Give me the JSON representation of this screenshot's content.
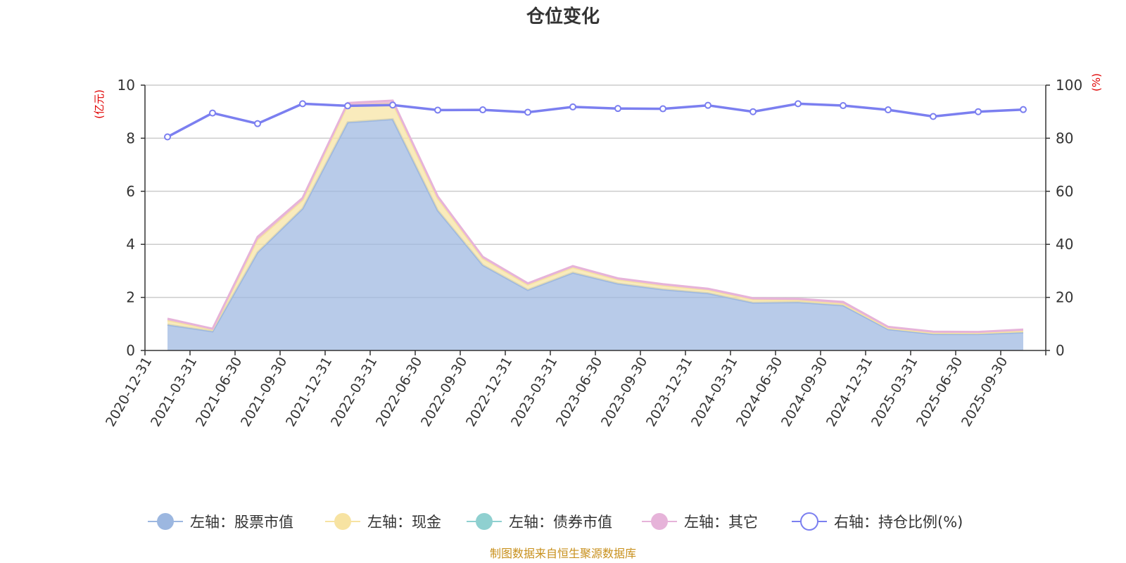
{
  "chart_data": {
    "type": "area",
    "title": "仓位变化",
    "left_axis_unit": "(亿元)",
    "right_axis_unit": "(%)",
    "ylim_left": [
      0,
      10
    ],
    "ylim_right": [
      0,
      100
    ],
    "yticks_left": [
      "0",
      "2",
      "4",
      "6",
      "8",
      "10"
    ],
    "yticks_right": [
      "0",
      "20",
      "40",
      "60",
      "80",
      "100"
    ],
    "categories": [
      "2020-12-31",
      "2021-03-31",
      "2021-06-30",
      "2021-09-30",
      "2021-12-31",
      "2022-03-31",
      "2022-06-30",
      "2022-09-30",
      "2022-12-31",
      "2023-03-31",
      "2023-06-30",
      "2023-09-30",
      "2023-12-31",
      "2024-03-31",
      "2024-06-30",
      "2024-09-30",
      "2024-12-31",
      "2025-03-31",
      "2025-06-30",
      "2025-09-30"
    ],
    "series": [
      {
        "name": "左轴：股票市值",
        "axis": "left",
        "stacked": true,
        "color": "#9cb7e0",
        "values": [
          0.97,
          0.72,
          3.7,
          5.35,
          8.6,
          8.72,
          5.28,
          3.22,
          2.28,
          2.93,
          2.52,
          2.3,
          2.16,
          1.8,
          1.82,
          1.7,
          0.8,
          0.62,
          0.62,
          0.68
        ]
      },
      {
        "name": "左轴：现金",
        "axis": "left",
        "stacked": true,
        "color": "#f7e3a2",
        "values": [
          0.17,
          0.07,
          0.48,
          0.32,
          0.65,
          0.6,
          0.45,
          0.25,
          0.2,
          0.2,
          0.15,
          0.15,
          0.12,
          0.12,
          0.08,
          0.07,
          0.05,
          0.05,
          0.04,
          0.06
        ]
      },
      {
        "name": "左轴：债券市值",
        "axis": "left",
        "stacked": true,
        "color": "#8fd0d0",
        "values": [
          0,
          0,
          0,
          0,
          0,
          0,
          0,
          0,
          0,
          0,
          0,
          0,
          0,
          0,
          0,
          0,
          0,
          0,
          0,
          0
        ]
      },
      {
        "name": "左轴：其它",
        "axis": "left",
        "stacked": true,
        "color": "#e6b3d9",
        "values": [
          0.06,
          0.03,
          0.1,
          0.08,
          0.08,
          0.1,
          0.08,
          0.06,
          0.05,
          0.05,
          0.05,
          0.05,
          0.05,
          0.05,
          0.05,
          0.06,
          0.04,
          0.04,
          0.04,
          0.05
        ]
      },
      {
        "name": "右轴：持仓比例(%)",
        "axis": "right",
        "stacked": false,
        "color": "#7b7ff0",
        "values": [
          80.5,
          89.5,
          85.5,
          93.0,
          92.2,
          92.5,
          90.6,
          90.7,
          89.8,
          91.8,
          91.2,
          91.1,
          92.4,
          90.0,
          93.0,
          92.3,
          90.7,
          88.2,
          90.0,
          90.8
        ]
      }
    ],
    "legend_position": "bottom",
    "grid": true
  },
  "footer": {
    "source_text": "制图数据来自恒生聚源数据库"
  }
}
